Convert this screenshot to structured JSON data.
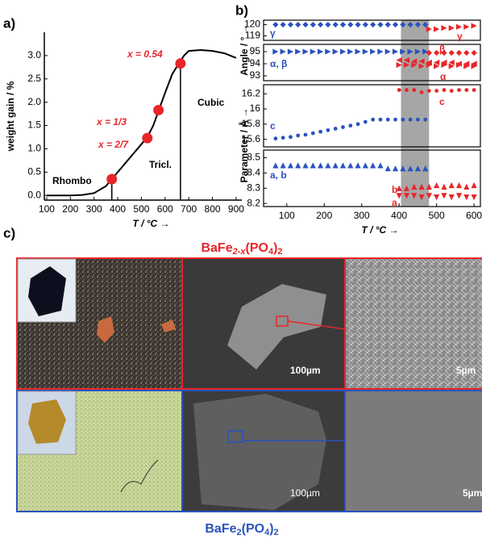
{
  "panel_labels": [
    "a)",
    "b)",
    "c)"
  ],
  "chart_data": [
    {
      "type": "line",
      "xlim": [
        90,
        924
      ],
      "ylim": [
        -0.1,
        3.5
      ],
      "xticks": [
        100,
        200,
        300,
        400,
        500,
        600,
        700,
        800,
        900
      ],
      "yticks": [
        {
          "value": 0,
          "label": "0.0"
        },
        {
          "value": 0.5,
          "label": "0.5"
        },
        {
          "value": 1,
          "label": "1.0"
        },
        {
          "value": 1.5,
          "label": "1.5"
        },
        {
          "value": 2,
          "label": "2.0"
        },
        {
          "value": 2.5,
          "label": "2.5"
        },
        {
          "value": 3,
          "label": "3.0"
        }
      ],
      "xlabel": "T / °C →",
      "ylabel": "weight gain / %",
      "series": [
        {
          "color": "#000000",
          "x": [
            100,
            150,
            200,
            250,
            300,
            350,
            375,
            400,
            450,
            500,
            525,
            550,
            575,
            600,
            630,
            660,
            680,
            700,
            750,
            800,
            850,
            900
          ],
          "values": [
            0,
            0,
            0,
            0.01,
            0.05,
            0.2,
            0.35,
            0.5,
            0.8,
            1.1,
            1.25,
            1.5,
            1.85,
            2.2,
            2.6,
            2.85,
            3.0,
            3.1,
            3.12,
            3.1,
            3.05,
            2.95
          ]
        },
        {
          "color": "#e8262a",
          "marker": "circle",
          "x": [
            375,
            525,
            572,
            665
          ],
          "values": [
            0.35,
            1.23,
            1.83,
            2.83
          ]
        }
      ],
      "annotations": [
        {
          "text": "x = 0.54",
          "color": "#e8262a"
        },
        {
          "text": "x = 1/3",
          "color": "#e8262a"
        },
        {
          "text": "x = 2/7",
          "color": "#e8262a"
        },
        {
          "text": "Rhombo",
          "color": "#000000"
        },
        {
          "text": "Tricl.",
          "color": "#000000"
        },
        {
          "text": "Cubic",
          "color": "#000000"
        }
      ]
    },
    {
      "type": "scatter",
      "xlim": [
        38,
        617
      ],
      "ylim": [
        118.6,
        120.4
      ],
      "yticks": [
        119,
        120
      ],
      "ylabel": "Angle / ° →",
      "series": [
        {
          "color": "#2a52be",
          "marker": "diamond",
          "x": [
            70,
            90,
            110,
            130,
            150,
            170,
            190,
            210,
            230,
            250,
            270,
            290,
            310,
            330,
            350,
            370,
            390,
            410,
            430,
            450,
            470
          ],
          "values": [
            120,
            120,
            120,
            120,
            120,
            120,
            120,
            120,
            120,
            120,
            120,
            120,
            120,
            120,
            120,
            120,
            120,
            120,
            120,
            120,
            120
          ]
        },
        {
          "color": "#e8262a",
          "marker": "triangle-right",
          "x": [
            480,
            500,
            520,
            540,
            560,
            580,
            600
          ],
          "values": [
            119.6,
            119.6,
            119.7,
            119.7,
            119.8,
            119.8,
            119.9
          ]
        }
      ],
      "annotations": [
        {
          "text": "γ",
          "color": "#2a52be"
        },
        {
          "text": "γ",
          "color": "#e8262a"
        }
      ]
    },
    {
      "type": "scatter",
      "xlim": [
        38,
        617
      ],
      "ylim": [
        92.6,
        95.6
      ],
      "yticks": [
        93,
        94,
        95
      ],
      "series": [
        {
          "color": "#2a52be",
          "marker": "triangle-right",
          "x": [
            70,
            90,
            110,
            130,
            150,
            170,
            190,
            210,
            230,
            250,
            270,
            290,
            310,
            330,
            350,
            370,
            390,
            410,
            430,
            450,
            470
          ],
          "values": [
            95,
            95,
            95,
            95,
            95,
            95,
            95,
            95,
            95,
            95,
            95,
            95,
            95,
            95,
            95,
            95,
            95,
            95,
            95,
            95,
            95
          ]
        },
        {
          "color": "#e8262a",
          "marker": "diamond",
          "x": [
            480,
            500,
            520,
            540,
            560,
            580,
            600
          ],
          "values": [
            94.9,
            94.9,
            94.9,
            94.9,
            94.9,
            94.9,
            94.9
          ]
        },
        {
          "color": "#e8262a",
          "marker": "triangle-left",
          "x": [
            400,
            420,
            440,
            460,
            480,
            500,
            520,
            540,
            560,
            580,
            600
          ],
          "values": [
            94.3,
            94.3,
            94.2,
            94.2,
            94.1,
            94.1,
            94.1,
            94.1,
            94.0,
            94.0,
            94.0
          ]
        },
        {
          "color": "#e8262a",
          "marker": "triangle-right",
          "x": [
            400,
            420,
            440,
            460,
            480,
            500,
            520,
            540,
            560,
            580,
            600
          ],
          "values": [
            93.9,
            93.9,
            93.9,
            93.8,
            93.9,
            93.8,
            93.9,
            93.8,
            93.9,
            93.8,
            93.8
          ]
        }
      ],
      "annotations": [
        {
          "text": "α, β",
          "color": "#2a52be"
        },
        {
          "text": "β",
          "color": "#e8262a"
        },
        {
          "text": "α",
          "color": "#e8262a"
        }
      ]
    },
    {
      "type": "scatter",
      "xlim": [
        38,
        617
      ],
      "ylim": [
        15.5,
        16.32
      ],
      "yticks": [
        15.6,
        15.8,
        16.0,
        16.2
      ],
      "ylabel": "Parameter / Å →",
      "series": [
        {
          "color": "#2a52be",
          "marker": "circle",
          "x": [
            70,
            90,
            110,
            130,
            150,
            170,
            190,
            210,
            230,
            250,
            270,
            290,
            310,
            330,
            350,
            370,
            390,
            410,
            430,
            450,
            470
          ],
          "values": [
            15.61,
            15.62,
            15.63,
            15.65,
            15.66,
            15.68,
            15.7,
            15.72,
            15.74,
            15.76,
            15.78,
            15.8,
            15.83,
            15.86,
            15.86,
            15.86,
            15.86,
            15.86,
            15.86,
            15.86,
            15.86
          ]
        },
        {
          "color": "#e8262a",
          "marker": "circle",
          "x": [
            400,
            420,
            440,
            460,
            480,
            500,
            520,
            540,
            560,
            580,
            600
          ],
          "values": [
            16.25,
            16.25,
            16.25,
            16.22,
            16.24,
            16.24,
            16.25,
            16.24,
            16.25,
            16.25,
            16.25
          ]
        }
      ],
      "annotations": [
        {
          "text": "c",
          "color": "#2a52be"
        },
        {
          "text": "c",
          "color": "#e8262a"
        }
      ]
    },
    {
      "type": "scatter",
      "xlim": [
        38,
        617
      ],
      "ylim": [
        8.18,
        8.55
      ],
      "yticks": [
        8.2,
        8.3,
        8.4,
        8.5
      ],
      "xticks": [
        100,
        200,
        300,
        400,
        500,
        600
      ],
      "xlabel": "T / °C →",
      "series": [
        {
          "color": "#2a52be",
          "marker": "triangle-up",
          "x": [
            70,
            90,
            110,
            130,
            150,
            170,
            190,
            210,
            230,
            250,
            270,
            290,
            310,
            330,
            350,
            370,
            390,
            410,
            430,
            450,
            470
          ],
          "values": [
            8.45,
            8.45,
            8.45,
            8.45,
            8.45,
            8.45,
            8.45,
            8.45,
            8.45,
            8.45,
            8.45,
            8.45,
            8.45,
            8.45,
            8.45,
            8.43,
            8.43,
            8.43,
            8.43,
            8.43,
            8.43
          ]
        },
        {
          "color": "#e8262a",
          "marker": "triangle-up",
          "x": [
            400,
            420,
            440,
            460,
            480,
            500,
            520,
            540,
            560,
            580,
            600
          ],
          "values": [
            8.3,
            8.3,
            8.31,
            8.31,
            8.31,
            8.32,
            8.31,
            8.32,
            8.32,
            8.31,
            8.32
          ]
        },
        {
          "color": "#e8262a",
          "marker": "triangle-down",
          "x": [
            400,
            420,
            440,
            460,
            480,
            500,
            520,
            540,
            560,
            580,
            600
          ],
          "values": [
            8.25,
            8.25,
            8.25,
            8.24,
            8.25,
            8.24,
            8.25,
            8.24,
            8.25,
            8.24,
            8.24
          ]
        }
      ],
      "annotations": [
        {
          "text": "a, b",
          "color": "#2a52be"
        },
        {
          "text": "b",
          "color": "#e8262a"
        },
        {
          "text": "a",
          "color": "#e8262a"
        }
      ]
    }
  ],
  "images": {
    "title_top": [
      "BaFe",
      "2-x",
      "(PO",
      "4",
      ")",
      "2"
    ],
    "title_bottom": [
      "BaFe",
      "2",
      "(PO",
      "4",
      ")",
      "2"
    ],
    "scale_labels": [
      "100µm",
      "5µm",
      "100µm",
      "5µm"
    ]
  }
}
